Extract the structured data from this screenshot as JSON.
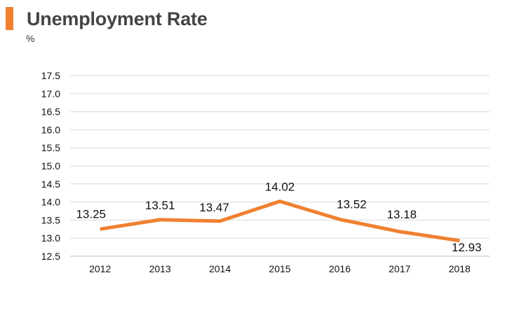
{
  "header": {
    "title": "Unemployment Rate",
    "unit": "%"
  },
  "colors": {
    "accent": "#f08030",
    "line": "#f08030",
    "grid": "#d9d9d9",
    "axis": "#bfbfbf"
  },
  "chart_data": {
    "type": "line",
    "title": "Unemployment Rate",
    "ylabel": "%",
    "xlabel": "",
    "categories": [
      "2012",
      "2013",
      "2014",
      "2015",
      "2016",
      "2017",
      "2018"
    ],
    "series": [
      {
        "values": [
          13.25,
          13.51,
          13.47,
          14.02,
          13.52,
          13.18,
          12.93
        ]
      }
    ],
    "data_labels": [
      "13.25",
      "13.51",
      "13.47",
      "14.02",
      "13.52",
      "13.18",
      "12.93"
    ],
    "ylim": [
      12.5,
      17.5
    ],
    "yticks": [
      "12.5",
      "13.0",
      "13.5",
      "14.0",
      "14.5",
      "15.0",
      "15.5",
      "16.0",
      "16.5",
      "17.0",
      "17.5"
    ],
    "grid": true,
    "legend": "none"
  }
}
